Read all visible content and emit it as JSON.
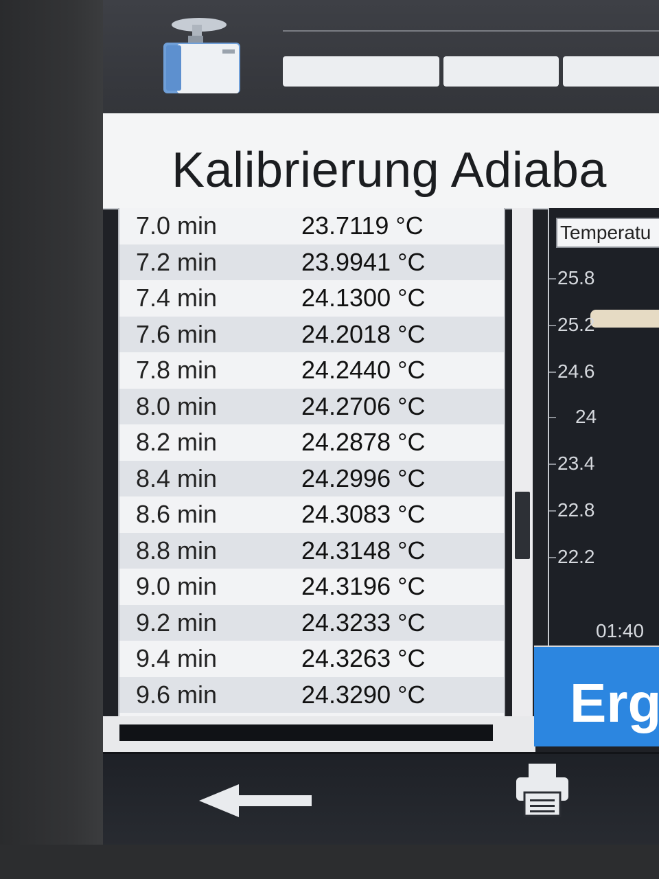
{
  "screen_title": "Kalibrierung Adiaba",
  "tabs": [
    "",
    "",
    ""
  ],
  "readings": [
    {
      "time": "7.0 min",
      "temp": "23.7119 °C"
    },
    {
      "time": "7.2 min",
      "temp": "23.9941 °C"
    },
    {
      "time": "7.4 min",
      "temp": "24.1300 °C"
    },
    {
      "time": "7.6 min",
      "temp": "24.2018 °C"
    },
    {
      "time": "7.8 min",
      "temp": "24.2440 °C"
    },
    {
      "time": "8.0 min",
      "temp": "24.2706 °C"
    },
    {
      "time": "8.2 min",
      "temp": "24.2878 °C"
    },
    {
      "time": "8.4 min",
      "temp": "24.2996 °C"
    },
    {
      "time": "8.6 min",
      "temp": "24.3083 °C"
    },
    {
      "time": "8.8 min",
      "temp": "24.3148 °C"
    },
    {
      "time": "9.0 min",
      "temp": "24.3196 °C"
    },
    {
      "time": "9.2 min",
      "temp": "24.3233 °C"
    },
    {
      "time": "9.4 min",
      "temp": "24.3263 °C"
    },
    {
      "time": "9.6 min",
      "temp": "24.3290 °C"
    }
  ],
  "chart": {
    "label": "Temperatu",
    "y_ticks": [
      "25.8",
      "25.2",
      "24.6",
      "24",
      "23.4",
      "22.8",
      "22.2"
    ],
    "x_tick": "01:40"
  },
  "result_button": "Erg",
  "icons": {
    "device": "calorimeter-icon",
    "back": "back-arrow-icon",
    "print": "printer-icon"
  },
  "colors": {
    "accent": "#2c86e0",
    "list_bg": "#f2f3f5",
    "row_alt": "#dfe2e7",
    "nav_bg": "#1e2127"
  }
}
